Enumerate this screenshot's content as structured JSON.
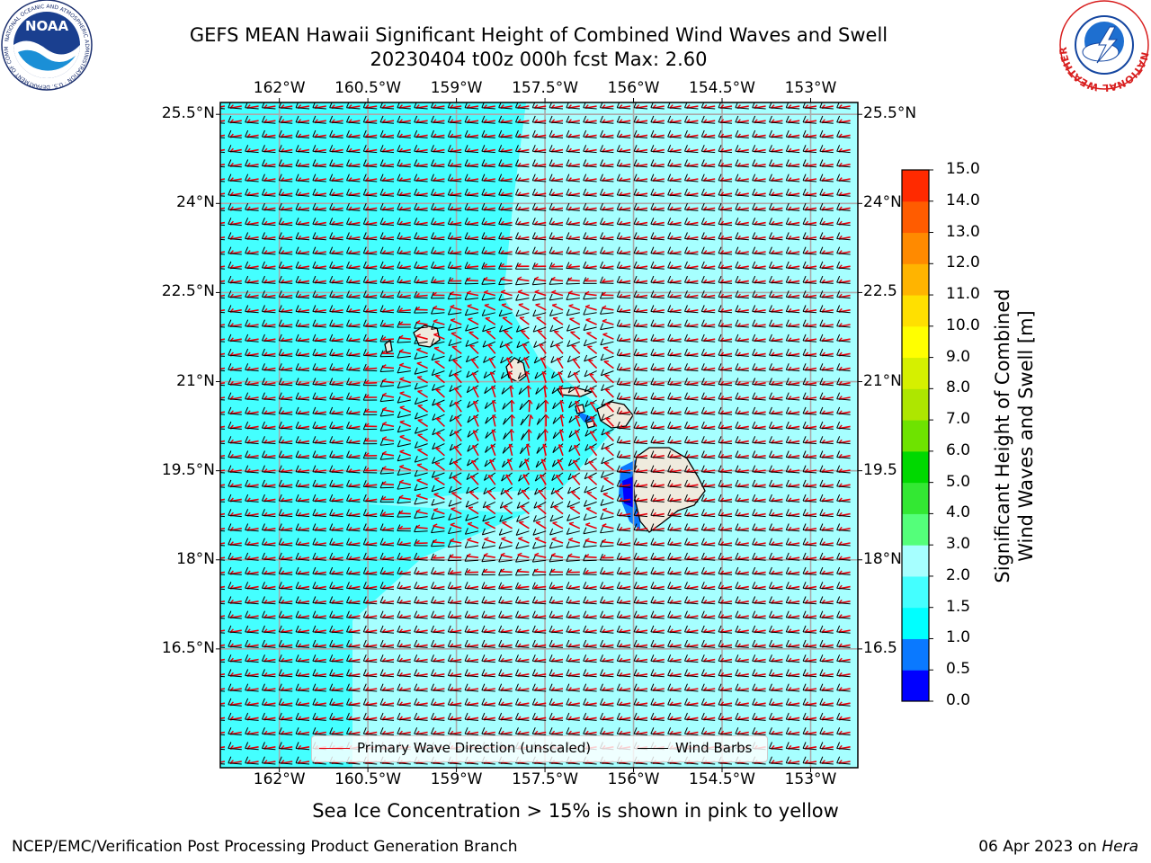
{
  "header": {
    "title_line1": "GEFS MEAN Hawaii Significant Height of Combined Wind Waves and Swell",
    "title_line2": "20230404 t00z 000h fcst   Max: 2.60"
  },
  "logos": {
    "left": {
      "name": "NOAA",
      "icon": "noaa-logo",
      "ring_text": "NATIONAL OCEANIC AND ATMOSPHERIC ADMINISTRATION · U.S. DEPARTMENT OF COMMERCE"
    },
    "right": {
      "name": "National Weather Service",
      "icon": "nws-logo",
      "ring_text": "NATIONAL WEATHER SERVICE"
    }
  },
  "map": {
    "lon_ticks": [
      "162°W",
      "160.5°W",
      "159°W",
      "157.5°W",
      "156°W",
      "154.5°W",
      "153°W"
    ],
    "lat_ticks_left": [
      "25.5°N",
      "24°N",
      "22.5°N",
      "21°N",
      "19.5°N",
      "18°N",
      "16.5°N"
    ],
    "lat_ticks_right": [
      "25.5°N",
      "24°N",
      "22.5",
      "21°N",
      "19.5",
      "18°N",
      "16.5"
    ],
    "lon_range": [
      -163,
      -152.2
    ],
    "lat_range": [
      14.5,
      25.7
    ],
    "grid": true,
    "legend_placement": "bottom-center",
    "legend": [
      {
        "label": "Primary Wave Direction (unscaled)",
        "color": "#e8000b"
      },
      {
        "label": "Wind Barbs",
        "color": "#000000"
      }
    ],
    "islands": [
      "Niihau",
      "Kauai",
      "Oahu",
      "Molokai",
      "Lanai",
      "Maui",
      "Kahoolawe",
      "Hawaii"
    ]
  },
  "colorbar": {
    "title_line1": "Significant Height of Combined",
    "title_line2": "Wind Waves and Swell [m]",
    "levels": [
      "0.0",
      "0.5",
      "1.0",
      "1.5",
      "2.0",
      "3.0",
      "4.0",
      "5.0",
      "6.0",
      "7.0",
      "8.0",
      "9.0",
      "10.0",
      "11.0",
      "12.0",
      "13.0",
      "14.0",
      "15.0"
    ],
    "colors": [
      "#0000ff",
      "#0a79ff",
      "#00ffff",
      "#44ffff",
      "#a6ffff",
      "#54ff7a",
      "#33e833",
      "#00d900",
      "#6ee300",
      "#aee600",
      "#d5f000",
      "#ffff00",
      "#ffe000",
      "#ffb400",
      "#ff8a00",
      "#ff5c00",
      "#ff2a00"
    ]
  },
  "footer": {
    "sea_ice_note": "Sea Ice Concentration > 15% is shown in pink to yellow",
    "left": "NCEP/EMC/Verification Post Processing Product Generation Branch",
    "date": "06 Apr 2023 on ",
    "system": "Hera"
  }
}
